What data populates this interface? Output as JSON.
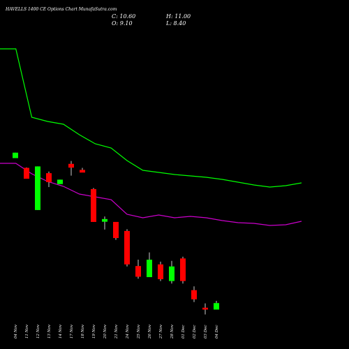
{
  "chart_data": {
    "type": "candlestick",
    "title": "HAVELLS 1400  CE Options  Chart MunafaSutra.com",
    "ohlc_readout": {
      "C": "C: 10.60",
      "H": "H: 11.00",
      "O": "O: 9.10",
      "L": "L: 8.40"
    },
    "colors": {
      "background": "#000000",
      "up": "#00ff00",
      "down": "#ff0000",
      "line_upper": "#00ff00",
      "line_lower": "#cc00cc",
      "text": "#ffffff"
    },
    "categories": [
      "04 Nov",
      "11 Nov",
      "12 Nov",
      "13 Nov",
      "14 Nov",
      "17 Nov",
      "18 Nov",
      "19 Nov",
      "20 Nov",
      "21 Nov",
      "24 Nov",
      "25 Nov",
      "26 Nov",
      "27 Nov",
      "28 Nov",
      "01 Dec",
      "02 Dec",
      "03 Dec",
      "04 Dec"
    ],
    "candles": [
      {
        "o": 63.6,
        "h": 68.9,
        "l": 63.6,
        "c": 68.9
      },
      {
        "o": 54.1,
        "h": 54.5,
        "l": 43.5,
        "c": 43.5
      },
      {
        "o": 13.0,
        "h": 55.5,
        "l": 13.0,
        "c": 55.5
      },
      {
        "o": 48.9,
        "h": 50.5,
        "l": 35.4,
        "c": 40.2
      },
      {
        "o": 38.3,
        "h": 42.6,
        "l": 38.3,
        "c": 42.6
      },
      {
        "o": 58.0,
        "h": 60.8,
        "l": 46.5,
        "c": 54.3
      },
      {
        "o": 52.1,
        "h": 54.1,
        "l": 50.3,
        "c": 49.5
      },
      {
        "o": 33.4,
        "h": 34.4,
        "l": 1.4,
        "c": 1.4
      },
      {
        "o": 1.6,
        "h": 6.7,
        "l": -6.0,
        "c": 4.2
      },
      {
        "o": 1.4,
        "h": 1.4,
        "l": -16.1,
        "c": -14.3
      },
      {
        "o": -7.4,
        "h": -5.7,
        "l": -42.0,
        "c": -40.0
      },
      {
        "o": -41.6,
        "h": -35.4,
        "l": -53.9,
        "c": -52.0
      },
      {
        "o": -52.4,
        "h": -28.3,
        "l": -52.4,
        "c": -35.4
      },
      {
        "o": -40.0,
        "h": -37.3,
        "l": -56.2,
        "c": -54.4
      },
      {
        "o": -56.2,
        "h": -36.6,
        "l": -58.7,
        "c": -42.0
      },
      {
        "o": -34.2,
        "h": -32.5,
        "l": -58.7,
        "c": -56.2
      },
      {
        "o": -65.1,
        "h": -61.4,
        "l": -76.7,
        "c": -74.0
      },
      {
        "o": -82.2,
        "h": -78.0,
        "l": -88.8,
        "c": -84.0
      },
      {
        "o": -84.0,
        "h": -75.5,
        "l": -84.0,
        "c": -77.7
      }
    ],
    "line_upper": [
      400,
      400,
      302,
      296,
      292,
      277,
      264,
      258,
      240,
      226,
      223,
      220,
      218,
      216,
      213,
      209,
      205,
      202,
      204,
      208
    ],
    "line_lower": [
      236,
      236,
      221,
      210,
      203,
      192,
      188,
      184,
      163,
      158,
      162,
      158,
      160,
      158,
      154,
      151,
      150,
      147,
      148,
      153
    ]
  }
}
